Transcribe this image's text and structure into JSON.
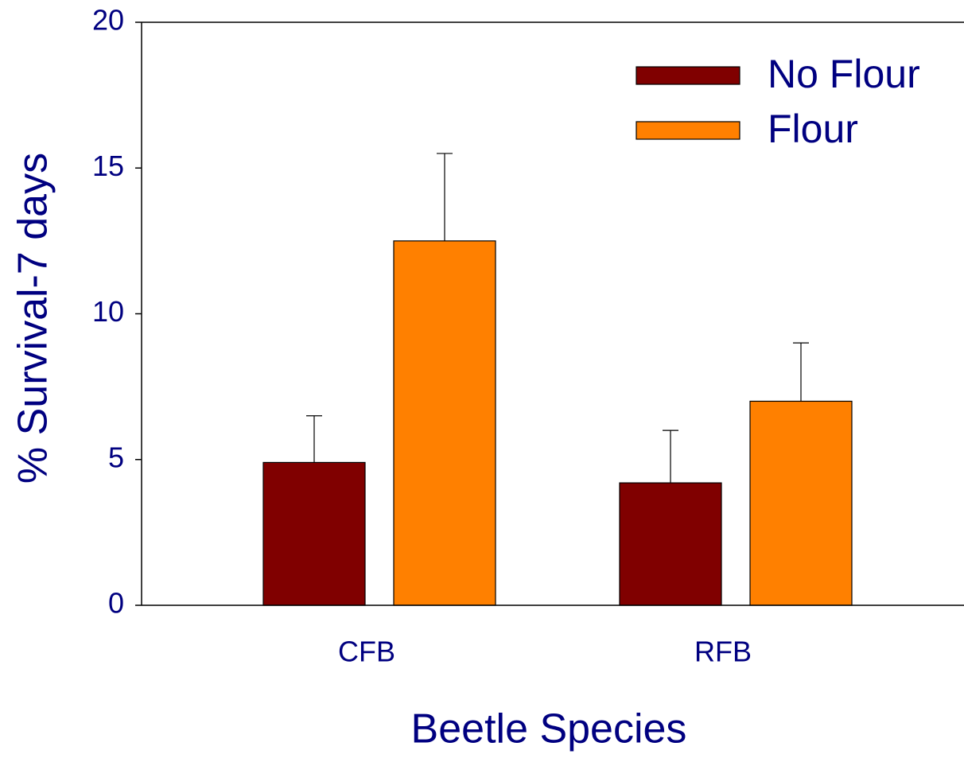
{
  "chart_data": {
    "type": "bar",
    "categories": [
      "CFB",
      "RFB"
    ],
    "series": [
      {
        "name": "No Flour",
        "color": "#800000",
        "values": [
          4.9,
          4.2
        ],
        "errors": [
          1.6,
          1.8
        ]
      },
      {
        "name": "Flour",
        "color": "#ff8000",
        "values": [
          12.5,
          7.0
        ],
        "errors": [
          3.0,
          2.0
        ]
      }
    ],
    "x_label": "Beetle Species",
    "y_label": "% Survival-7 days",
    "ylim": [
      0,
      20
    ],
    "yticks": [
      0,
      5,
      10,
      15,
      20
    ],
    "legend": "upper right"
  }
}
